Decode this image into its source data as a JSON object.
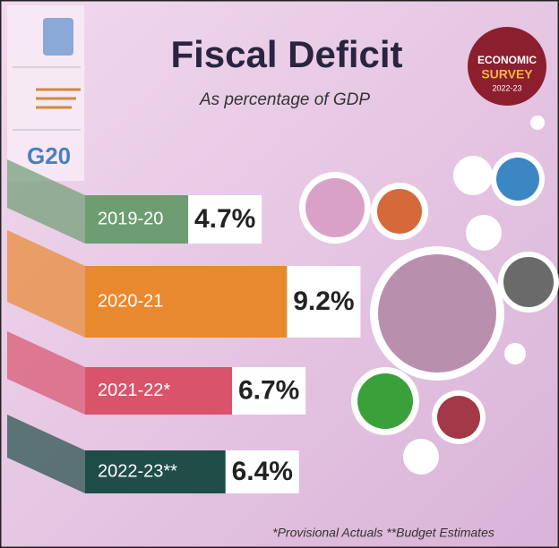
{
  "chart_data": {
    "type": "bar",
    "title": "Fiscal Deficit",
    "subtitle": "As percentage of GDP",
    "categories": [
      "2019-20",
      "2020-21",
      "2021-22*",
      "2022-23**"
    ],
    "values": [
      4.7,
      9.2,
      6.7,
      6.4
    ],
    "value_labels": [
      "4.7%",
      "9.2%",
      "6.7%",
      "6.4%"
    ],
    "colors": [
      "#6e9d72",
      "#e8892f",
      "#d9536b",
      "#1f4d47"
    ],
    "footnote": "*Provisional Actuals  **Budget Estimates",
    "badge": {
      "line1": "ECONOMIC",
      "line2": "SURVEY",
      "line3": "2022-23"
    },
    "logo_text": "G20"
  }
}
